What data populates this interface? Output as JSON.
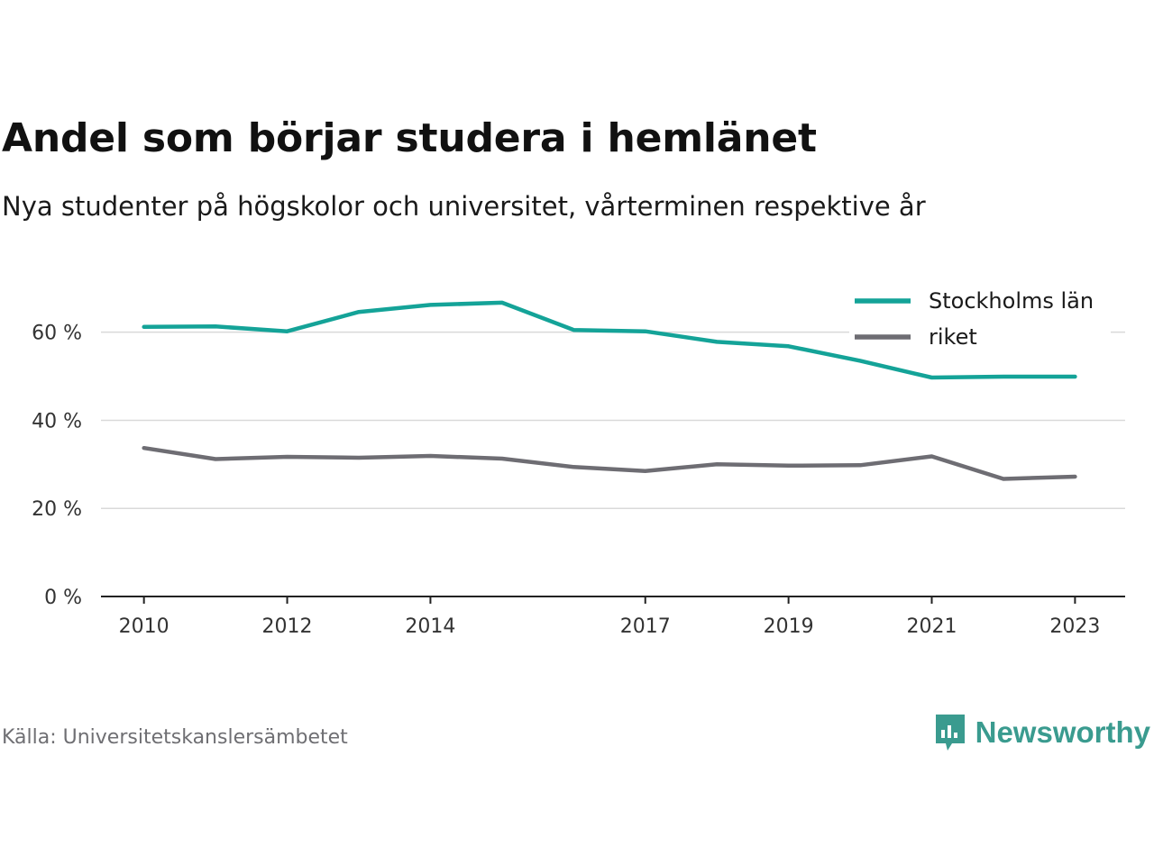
{
  "header": {
    "title": "Andel som börjar studera i hemlänet",
    "subtitle": "Nya studenter på högskolor och universitet, vårterminen respektive år"
  },
  "footer": {
    "source": "Källa: Universitetskanslersämbetet",
    "brand": "Newsworthy",
    "brand_color": "#3a9b8f",
    "brand_icon": "bar-chart-speech-bubble-icon"
  },
  "chart_data": {
    "type": "line",
    "title": "Andel som börjar studera i hemlänet",
    "subtitle": "Nya studenter på högskolor och universitet, vårterminen respektive år",
    "xlabel": "",
    "ylabel": "",
    "x": [
      2010,
      2011,
      2012,
      2013,
      2014,
      2015,
      2016,
      2017,
      2018,
      2019,
      2020,
      2021,
      2022,
      2023
    ],
    "x_tick_labels": [
      "2010",
      "2012",
      "2014",
      "2017",
      "2019",
      "2021",
      "2023"
    ],
    "x_ticks": [
      2010,
      2012,
      2014,
      2017,
      2019,
      2021,
      2023
    ],
    "xlim": [
      2009.4,
      2023.7
    ],
    "y_ticks": [
      0,
      20,
      40,
      60
    ],
    "y_tick_labels": [
      "0 %",
      "20 %",
      "40 %",
      "60 %"
    ],
    "ylim": [
      0,
      72
    ],
    "grid": true,
    "legend_position": "top-right",
    "series": [
      {
        "name": "Stockholms län",
        "color": "#14a398",
        "values": [
          61.2,
          61.3,
          60.2,
          64.6,
          66.2,
          66.7,
          60.5,
          60.2,
          57.8,
          56.8,
          53.5,
          49.7,
          49.9,
          49.9
        ]
      },
      {
        "name": "riket",
        "color": "#6e6d73",
        "values": [
          33.7,
          31.2,
          31.7,
          31.5,
          31.9,
          31.3,
          29.4,
          28.5,
          30.0,
          29.7,
          29.8,
          31.8,
          26.7,
          27.2
        ]
      }
    ]
  }
}
